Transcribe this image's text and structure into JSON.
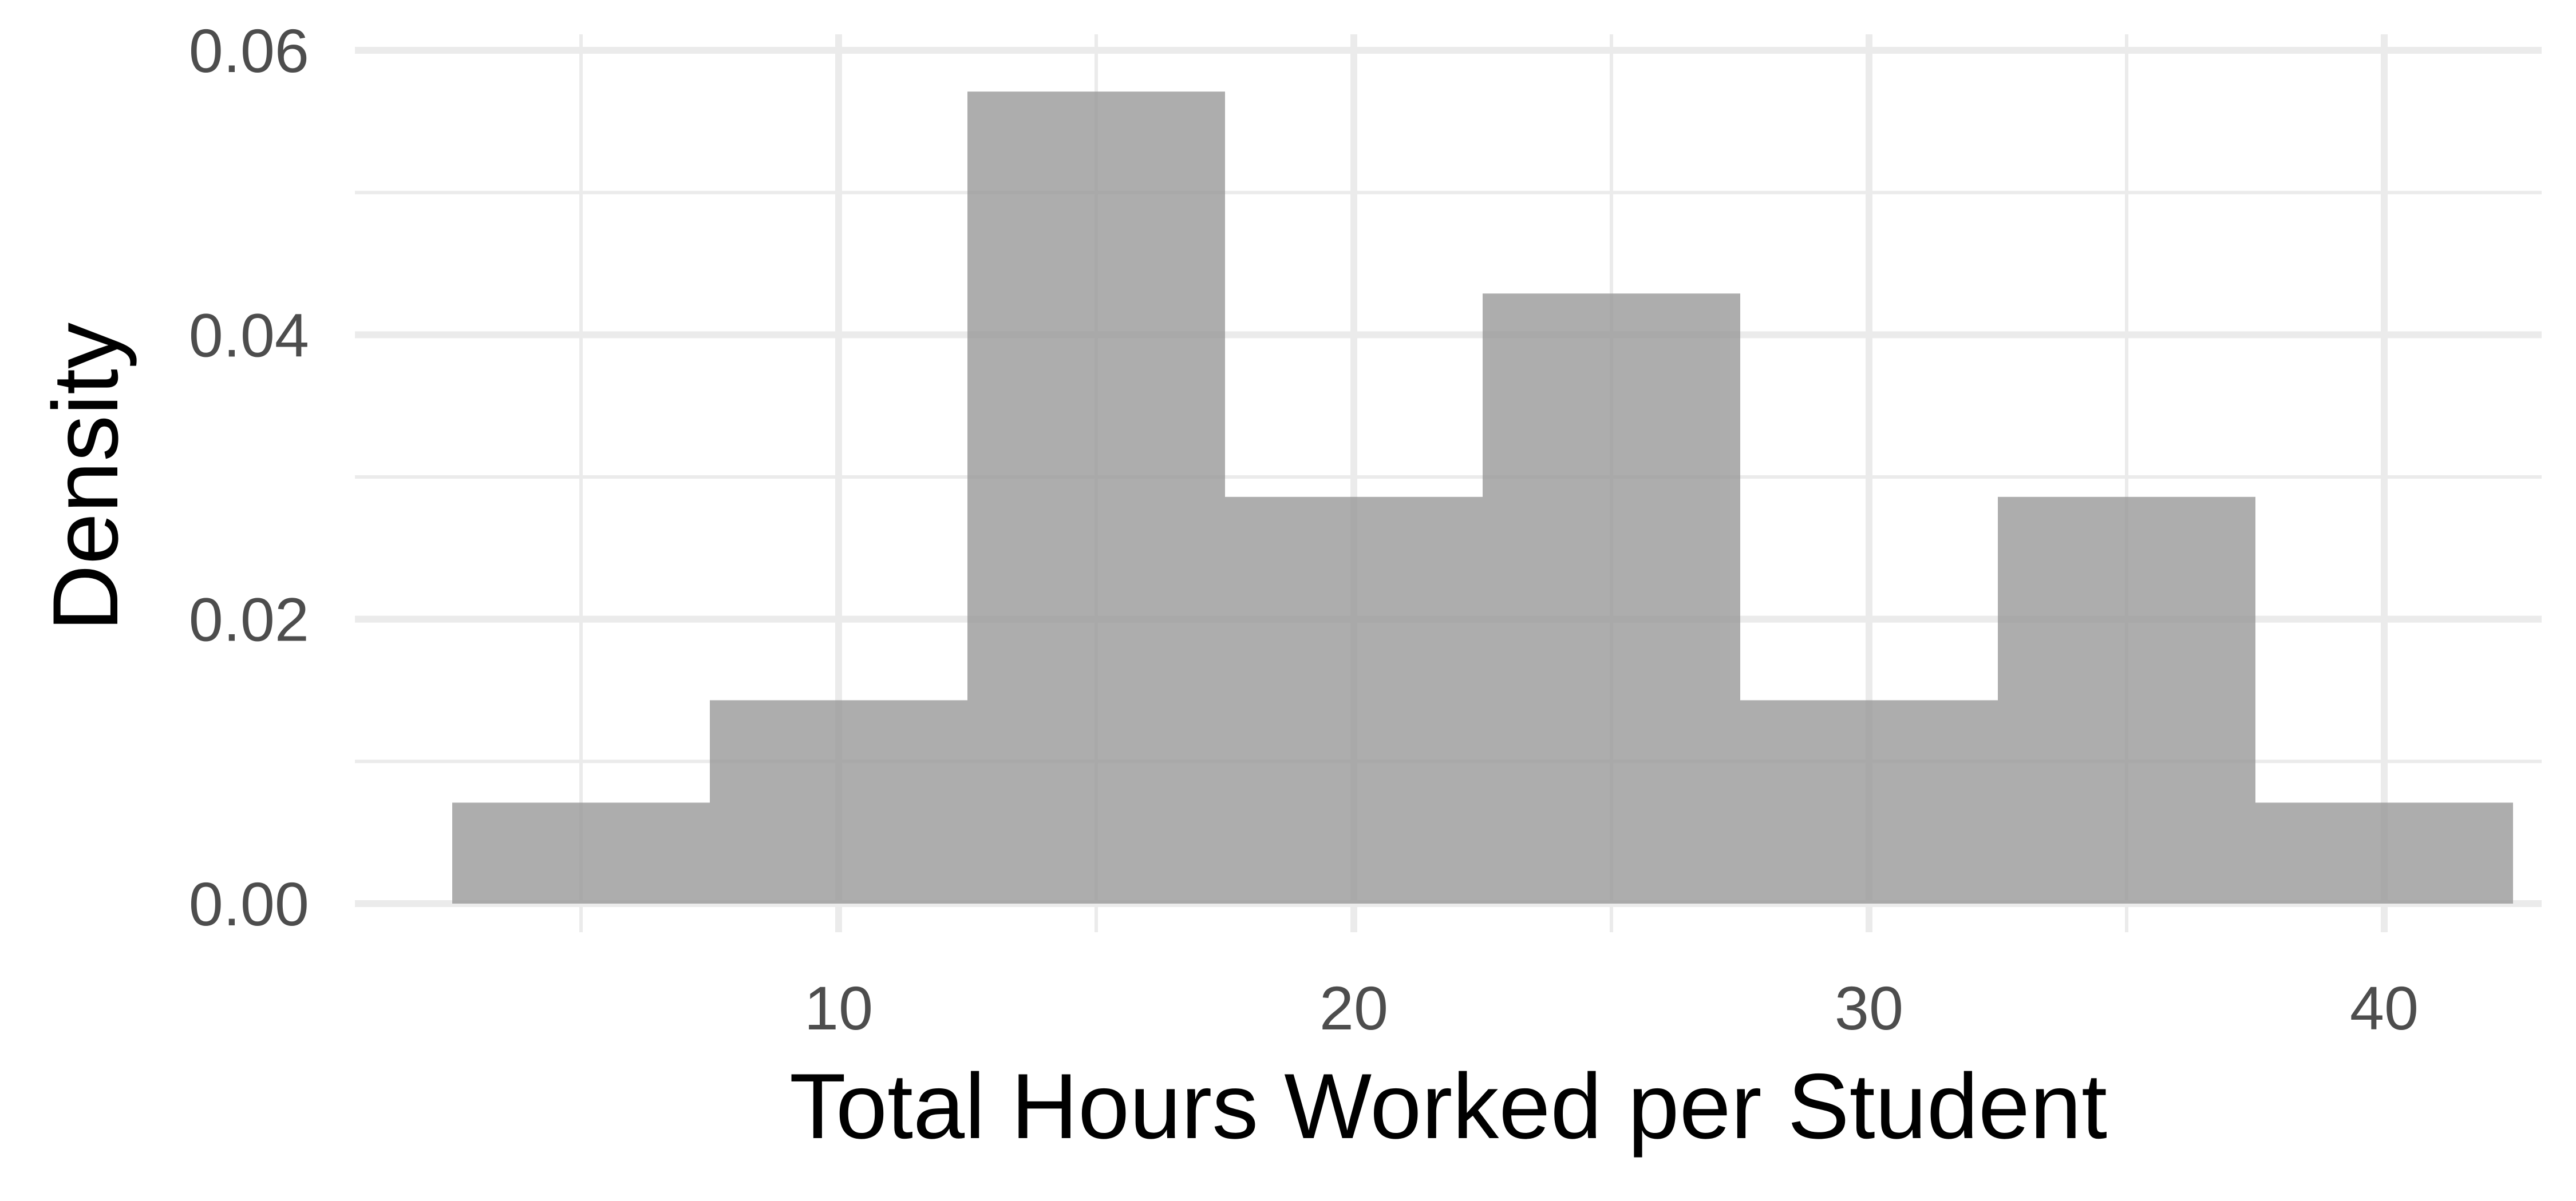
{
  "chart_data": {
    "type": "bar",
    "subtype": "histogram",
    "xlabel": "Total Hours Worked per Student",
    "ylabel": "Density",
    "xlim": [
      2.5,
      42.5
    ],
    "ylim": [
      0,
      0.06
    ],
    "x_ticks": [
      10,
      20,
      30,
      40
    ],
    "x_tick_labels": [
      "10",
      "20",
      "30",
      "40"
    ],
    "y_ticks": [
      0,
      0.02,
      0.04,
      0.06
    ],
    "y_tick_labels": [
      "0.00",
      "0.02",
      "0.04",
      "0.06"
    ],
    "bins": [
      {
        "start": 2.5,
        "end": 7.5,
        "density": 0.0071
      },
      {
        "start": 7.5,
        "end": 12.5,
        "density": 0.0143
      },
      {
        "start": 12.5,
        "end": 17.5,
        "density": 0.0571
      },
      {
        "start": 17.5,
        "end": 22.5,
        "density": 0.0286
      },
      {
        "start": 22.5,
        "end": 27.5,
        "density": 0.0429
      },
      {
        "start": 27.5,
        "end": 32.5,
        "density": 0.0143
      },
      {
        "start": 32.5,
        "end": 37.5,
        "density": 0.0286
      },
      {
        "start": 37.5,
        "end": 42.5,
        "density": 0.0071
      }
    ],
    "grid": true,
    "theme": "minimal",
    "bar_color": "#999999",
    "bar_opacity": 0.8,
    "grid_color": "#ebebeb"
  }
}
